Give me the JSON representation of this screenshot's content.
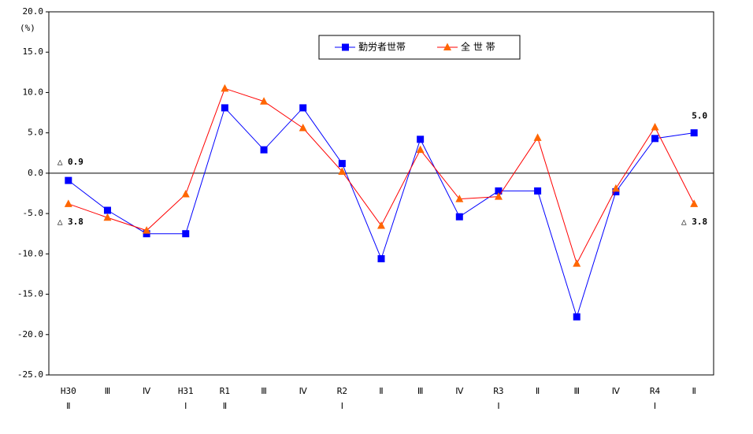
{
  "chart_data": {
    "type": "line",
    "y_unit": "(%)",
    "categories": [
      "H30\nⅡ",
      "Ⅲ",
      "Ⅳ",
      "H31\nⅠ",
      "R1\nⅡ",
      "Ⅲ",
      "Ⅳ",
      "R2\nⅠ",
      "Ⅱ",
      "Ⅲ",
      "Ⅳ",
      "R3\nⅠ",
      "Ⅱ",
      "Ⅲ",
      "Ⅳ",
      "R4\nⅠ",
      "Ⅱ"
    ],
    "series": [
      {
        "name": "勤労者世帯",
        "color": "#0000ff",
        "marker": "square",
        "marker_color": "#0000ff",
        "label_color": "#0070c0",
        "values": [
          -0.9,
          -4.6,
          -7.5,
          -7.5,
          8.1,
          2.9,
          8.1,
          1.2,
          -10.6,
          4.2,
          -5.4,
          -2.2,
          -2.2,
          -17.8,
          -2.3,
          4.3,
          5.0
        ],
        "value_labels": [
          "△ 0.9",
          null,
          null,
          null,
          null,
          null,
          null,
          null,
          null,
          null,
          null,
          null,
          null,
          null,
          null,
          null,
          "5.0"
        ]
      },
      {
        "name": "全 世 帯",
        "color": "#ff0000",
        "marker": "triangle",
        "marker_color": "#ff6600",
        "label_color": "#c00000",
        "values": [
          -3.8,
          -5.5,
          -7.1,
          -2.6,
          10.5,
          8.9,
          5.6,
          0.2,
          -6.5,
          2.9,
          -3.2,
          -2.9,
          4.4,
          -11.2,
          -1.9,
          5.7,
          -3.8
        ],
        "value_labels": [
          "△ 3.8",
          null,
          null,
          null,
          null,
          null,
          null,
          null,
          null,
          null,
          null,
          null,
          null,
          null,
          null,
          null,
          "△ 3.8"
        ]
      }
    ],
    "ylim": [
      -25,
      20
    ],
    "yticks": [
      {
        "value": -25,
        "label": "-25.0"
      },
      {
        "value": -20,
        "label": "-20.0"
      },
      {
        "value": -15,
        "label": "-15.0"
      },
      {
        "value": -10,
        "label": "-10.0"
      },
      {
        "value": -5,
        "label": "-5.0"
      },
      {
        "value": 0,
        "label": "0.0"
      },
      {
        "value": 5,
        "label": "5.0"
      },
      {
        "value": 10,
        "label": "10.0"
      },
      {
        "value": 15,
        "label": "15.0"
      },
      {
        "value": 20,
        "label": "20.0"
      }
    ],
    "zero_line": true,
    "grid": false,
    "legend": "top"
  }
}
